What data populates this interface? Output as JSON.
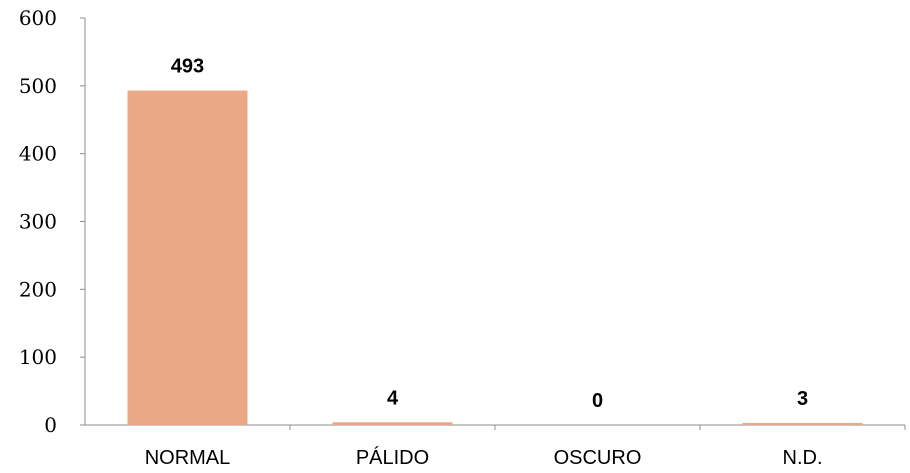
{
  "chart_data": {
    "type": "bar",
    "title": "",
    "xlabel": "",
    "ylabel": "",
    "categories": [
      "NORMAL",
      "PÁLIDO",
      "OSCURO",
      "N.D."
    ],
    "values": [
      493,
      4,
      0,
      3
    ],
    "data_labels": [
      "493",
      "4",
      "0",
      "3"
    ],
    "ylim": [
      0,
      600
    ],
    "yticks": [
      0,
      100,
      200,
      300,
      400,
      500,
      600
    ],
    "ytick_labels": [
      "0",
      "100",
      "200",
      "300",
      "400",
      "500",
      "600"
    ],
    "grid": false,
    "legend": "none",
    "bar_color": "#eba885",
    "axis_color": "#8c8c8c"
  }
}
